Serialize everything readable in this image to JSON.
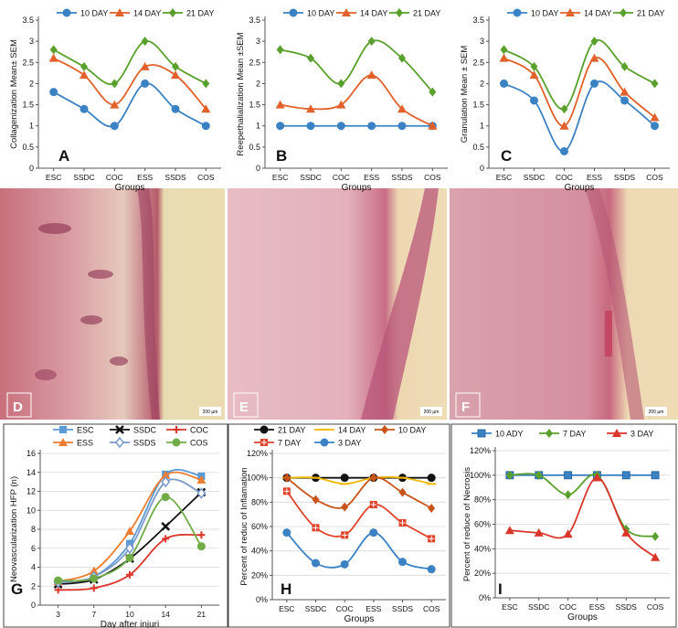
{
  "colors": {
    "blue": "#3b82c4",
    "orange": "#e2612a",
    "green": "#5aa02c",
    "grid": "#d9d9d9"
  },
  "chart_data": [
    {
      "id": "A",
      "type": "line",
      "title": "",
      "xlabel": "Groups",
      "ylabel": "Collagenization Mean± SEM",
      "categories": [
        "ESC",
        "SSDC",
        "COC",
        "ESS",
        "SSDS",
        "COS"
      ],
      "ylim": [
        0,
        3.5
      ],
      "ystep": 0.5,
      "ydecimals": 1,
      "series": [
        {
          "name": "10 DAY",
          "color": "#3b82c4",
          "marker": "circle",
          "values": [
            1.8,
            1.4,
            1.0,
            2.0,
            1.4,
            1.0
          ]
        },
        {
          "name": "14 DAY",
          "color": "#e2612a",
          "marker": "triangle",
          "values": [
            2.6,
            2.2,
            1.5,
            2.4,
            2.2,
            1.4
          ]
        },
        {
          "name": "21 DAY",
          "color": "#5aa02c",
          "marker": "diamond",
          "values": [
            2.8,
            2.4,
            2.0,
            3.0,
            2.4,
            2.0
          ]
        }
      ]
    },
    {
      "id": "B",
      "type": "line",
      "title": "",
      "xlabel": "Groups",
      "ylabel": "Reepethalialization Mean ±SEM",
      "categories": [
        "ESC",
        "SSDC",
        "COC",
        "ESS",
        "SSDS",
        "COS"
      ],
      "ylim": [
        0,
        3.5
      ],
      "ystep": 0.5,
      "ydecimals": 1,
      "series": [
        {
          "name": "10 DAY",
          "color": "#3b82c4",
          "marker": "circle",
          "values": [
            1.0,
            1.0,
            1.0,
            1.0,
            1.0,
            1.0
          ]
        },
        {
          "name": "14 DAY",
          "color": "#e2612a",
          "marker": "triangle",
          "values": [
            1.5,
            1.4,
            1.5,
            2.2,
            1.4,
            1.0
          ]
        },
        {
          "name": "21 DAY",
          "color": "#5aa02c",
          "marker": "diamond",
          "values": [
            2.8,
            2.6,
            2.0,
            3.0,
            2.6,
            1.8
          ]
        }
      ]
    },
    {
      "id": "C",
      "type": "line",
      "title": "",
      "xlabel": "Groups",
      "ylabel": "Granulation Mean ± SEM",
      "categories": [
        "ESC",
        "SSDC",
        "COC",
        "ESS",
        "SSDS",
        "COS"
      ],
      "ylim": [
        0,
        3.5
      ],
      "ystep": 0.5,
      "ydecimals": 1,
      "series": [
        {
          "name": "10 DAY",
          "color": "#3b82c4",
          "marker": "circle",
          "values": [
            2.0,
            1.6,
            0.4,
            2.0,
            1.6,
            1.0
          ]
        },
        {
          "name": "14 DAY",
          "color": "#e2612a",
          "marker": "triangle",
          "values": [
            2.6,
            2.2,
            1.0,
            2.6,
            1.8,
            1.2
          ]
        },
        {
          "name": "21 DAY",
          "color": "#5aa02c",
          "marker": "diamond",
          "values": [
            2.8,
            2.4,
            1.4,
            3.0,
            2.4,
            2.0
          ]
        }
      ]
    },
    {
      "id": "G",
      "type": "line",
      "title": "",
      "xlabel": "Day after injuri",
      "ylabel": "Neovascularization HFP (n)",
      "categories": [
        "3",
        "7",
        "10",
        "14",
        "21"
      ],
      "ylim": [
        0,
        16
      ],
      "ystep": 2,
      "ydecimals": 0,
      "series": [
        {
          "name": "ESC",
          "color": "#5b9bd5",
          "marker": "square",
          "values": [
            2.5,
            3.0,
            6.5,
            13.8,
            13.6
          ]
        },
        {
          "name": "SSDC",
          "color": "#111111",
          "marker": "cross",
          "values": [
            2.2,
            2.7,
            4.9,
            8.3,
            11.9
          ]
        },
        {
          "name": "COC",
          "color": "#d9352b",
          "marker": "plus",
          "values": [
            1.6,
            1.8,
            3.2,
            7.0,
            7.4
          ]
        },
        {
          "name": "ESS",
          "color": "#ed7d31",
          "marker": "triangle",
          "values": [
            2.5,
            3.6,
            7.8,
            13.7,
            13.2
          ]
        },
        {
          "name": "SSDS",
          "color": "#7a9ac8",
          "marker": "diamondhollow",
          "values": [
            2.4,
            3.0,
            6.0,
            13.0,
            11.8
          ]
        },
        {
          "name": "COS",
          "color": "#70ad47",
          "marker": "circle",
          "values": [
            2.6,
            2.8,
            5.0,
            11.4,
            6.2
          ]
        }
      ]
    },
    {
      "id": "H",
      "type": "line",
      "title": "",
      "xlabel": "Groups",
      "ylabel": "Percent of reduc of Inflamation",
      "categories": [
        "ESC",
        "SSDC",
        "COC",
        "ESS",
        "SSDS",
        "COS"
      ],
      "ylim": [
        0,
        120
      ],
      "ystep": 20,
      "ydecimals": 0,
      "percent": true,
      "series": [
        {
          "name": "21 DAY",
          "color": "#111111",
          "marker": "circle",
          "values": [
            100,
            100,
            100,
            100,
            100,
            100
          ]
        },
        {
          "name": "14 DAY",
          "color": "#f2b800",
          "marker": "dash",
          "values": [
            100,
            100,
            95,
            100,
            100,
            95
          ]
        },
        {
          "name": "10 DAY",
          "color": "#c8541a",
          "marker": "diamond",
          "values": [
            100,
            82,
            76,
            100,
            88,
            75
          ]
        },
        {
          "name": "7 DAY",
          "color": "#e0422a",
          "marker": "squarecross",
          "values": [
            89,
            59,
            53,
            78,
            63,
            50
          ]
        },
        {
          "name": "3 DAY",
          "color": "#3b82c4",
          "marker": "circle",
          "values": [
            55,
            30,
            29,
            55,
            31,
            25
          ]
        }
      ]
    },
    {
      "id": "I",
      "type": "line",
      "title": "",
      "xlabel": "Groups",
      "ylabel": "Percent of reduce of Necrosis",
      "categories": [
        "ESC",
        "SSDC",
        "COC",
        "ESS",
        "SSDS",
        "COS"
      ],
      "ylim": [
        0,
        120
      ],
      "ystep": 20,
      "ydecimals": 0,
      "percent": true,
      "series": [
        {
          "name": "10 ADY",
          "color": "#3b82c4",
          "marker": "xsquare",
          "values": [
            100,
            100,
            100,
            100,
            100,
            100
          ]
        },
        {
          "name": "7 DAY",
          "color": "#5aa02c",
          "marker": "diamond",
          "values": [
            100,
            100,
            84,
            100,
            56,
            50
          ]
        },
        {
          "name": "3 DAY",
          "color": "#d9352b",
          "marker": "triangle",
          "values": [
            55,
            53,
            52,
            98,
            53,
            33
          ]
        }
      ]
    }
  ],
  "micrographs": [
    {
      "label": "D",
      "scale": "200 µm"
    },
    {
      "label": "E",
      "scale": "200 µm"
    },
    {
      "label": "F",
      "scale": "200 µm"
    }
  ]
}
